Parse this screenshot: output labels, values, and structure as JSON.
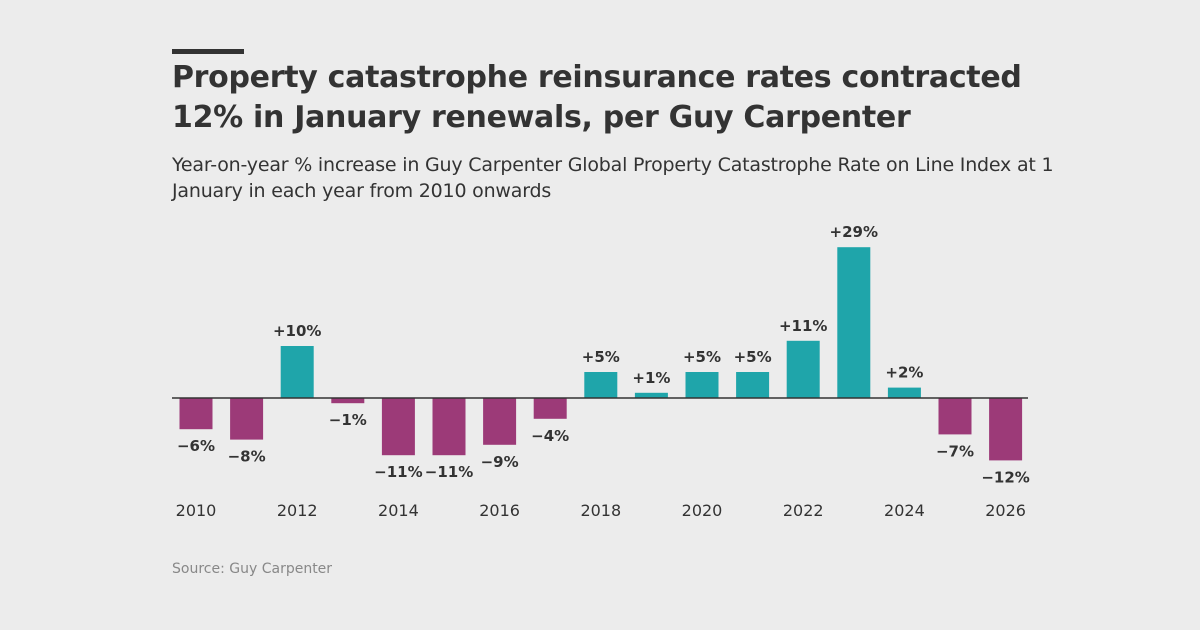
{
  "header": {
    "title": "Property catastrophe reinsurance rates contracted 12% in January renewals, per Guy Carpenter",
    "subtitle": "Year-on-year % increase in Guy Carpenter Global Property Catastrophe Rate on Line Index at 1 January in each year from 2010 onwards"
  },
  "footer": {
    "source": "Source: Guy Carpenter"
  },
  "colors": {
    "positive": "#1fa5aa",
    "negative": "#9c3a78",
    "text": "#333333",
    "axis": "#333333"
  },
  "chart_data": {
    "type": "bar",
    "title": "Property catastrophe reinsurance rates contracted 12% in January renewals, per Guy Carpenter",
    "subtitle": "Year-on-year % increase in Guy Carpenter Global Property Catastrophe Rate on Line Index at 1 January in each year from 2010 onwards",
    "xlabel": "",
    "ylabel": "",
    "categories": [
      "2010",
      "2011",
      "2012",
      "2013",
      "2014",
      "2015",
      "2016",
      "2017",
      "2018",
      "2019",
      "2020",
      "2021",
      "2022",
      "2023",
      "2024",
      "2025",
      "2026"
    ],
    "values": [
      -6,
      -8,
      10,
      -1,
      -11,
      -11,
      -9,
      -4,
      5,
      1,
      5,
      5,
      11,
      29,
      2,
      -7,
      -12
    ],
    "value_labels": [
      "−6%",
      "−8%",
      "+10%",
      "−1%",
      "−11%",
      "−11%",
      "−9%",
      "−4%",
      "+5%",
      "+1%",
      "+5%",
      "+5%",
      "+11%",
      "+29%",
      "+2%",
      "−7%",
      "−12%"
    ],
    "tick_labels": [
      "2010",
      "2012",
      "2014",
      "2016",
      "2018",
      "2020",
      "2022",
      "2024",
      "2026"
    ],
    "ylim": [
      -12,
      29
    ],
    "grid": false,
    "legend": "none"
  }
}
